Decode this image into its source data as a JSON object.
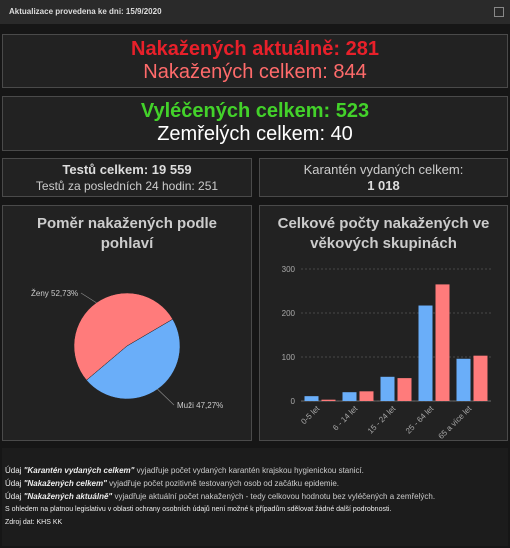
{
  "header": {
    "update": "Aktualizace provedena ke dni: 15/9/2020"
  },
  "stats": {
    "active": {
      "label": "Nakažených aktuálně:",
      "value": 281
    },
    "total": {
      "label": "Nakažených celkem:",
      "value": 844
    },
    "recovered": {
      "label": "Vyléčených celkem:",
      "value": 523
    },
    "deaths": {
      "label": "Zemřelých celkem:",
      "value": 40
    },
    "tests": {
      "label": "Testů celkem:",
      "value": "19 559"
    },
    "tests24": {
      "label": "Testů za posledních 24 hodin:",
      "value": 251
    },
    "quarantine": {
      "label": "Karantén vydaných celkem:",
      "value": "1 018"
    }
  },
  "chart_data": [
    {
      "type": "pie",
      "title": "Poměr nakažených podle pohlaví",
      "categories": [
        "Ženy",
        "Muži"
      ],
      "values": [
        52.73,
        47.27
      ],
      "value_labels": [
        "52,73%",
        "47,27%"
      ],
      "colors": [
        "#ff7b7b",
        "#6aaef9"
      ]
    },
    {
      "type": "bar",
      "title": "Celkové počty nakažených ve věkových skupinách",
      "categories": [
        "0-5 let",
        "6 - 14 let",
        "15 - 24 let",
        "25 - 64 let",
        "65 a více let"
      ],
      "series": [
        {
          "color": "#6aaef9",
          "values": [
            11,
            20,
            55,
            217,
            96
          ]
        },
        {
          "color": "#ff7b7b",
          "values": [
            3,
            22,
            52,
            265,
            103
          ]
        }
      ],
      "ylim": [
        0,
        300
      ],
      "yticks": [
        0,
        100,
        200,
        300
      ],
      "grid": true
    }
  ],
  "notes": [
    {
      "prefix": "Údaj",
      "term": "\"Karantén vydaných celkem\"",
      "text": "vyjadřuje počet vydaných karantén krajskou hygienickou stanicí."
    },
    {
      "prefix": "Údaj",
      "term": "\"Nakažených celkem\"",
      "text": "vyjadřuje počet pozitivně testovaných osob od začátku epidemie."
    },
    {
      "prefix": "Údaj",
      "term": "\"Nakažených aktuálně\"",
      "text": "vyjadřuje aktuální počet nakažených - tedy celkovou hodnotu bez vyléčených a zemřelých."
    }
  ],
  "footer": {
    "legal": "S ohledem na platnou legislativu v oblasti ochrany osobních údajů není možné k případům sdělovat žádné další podrobnosti.",
    "source": "Zdroj dat: KHS KK"
  }
}
